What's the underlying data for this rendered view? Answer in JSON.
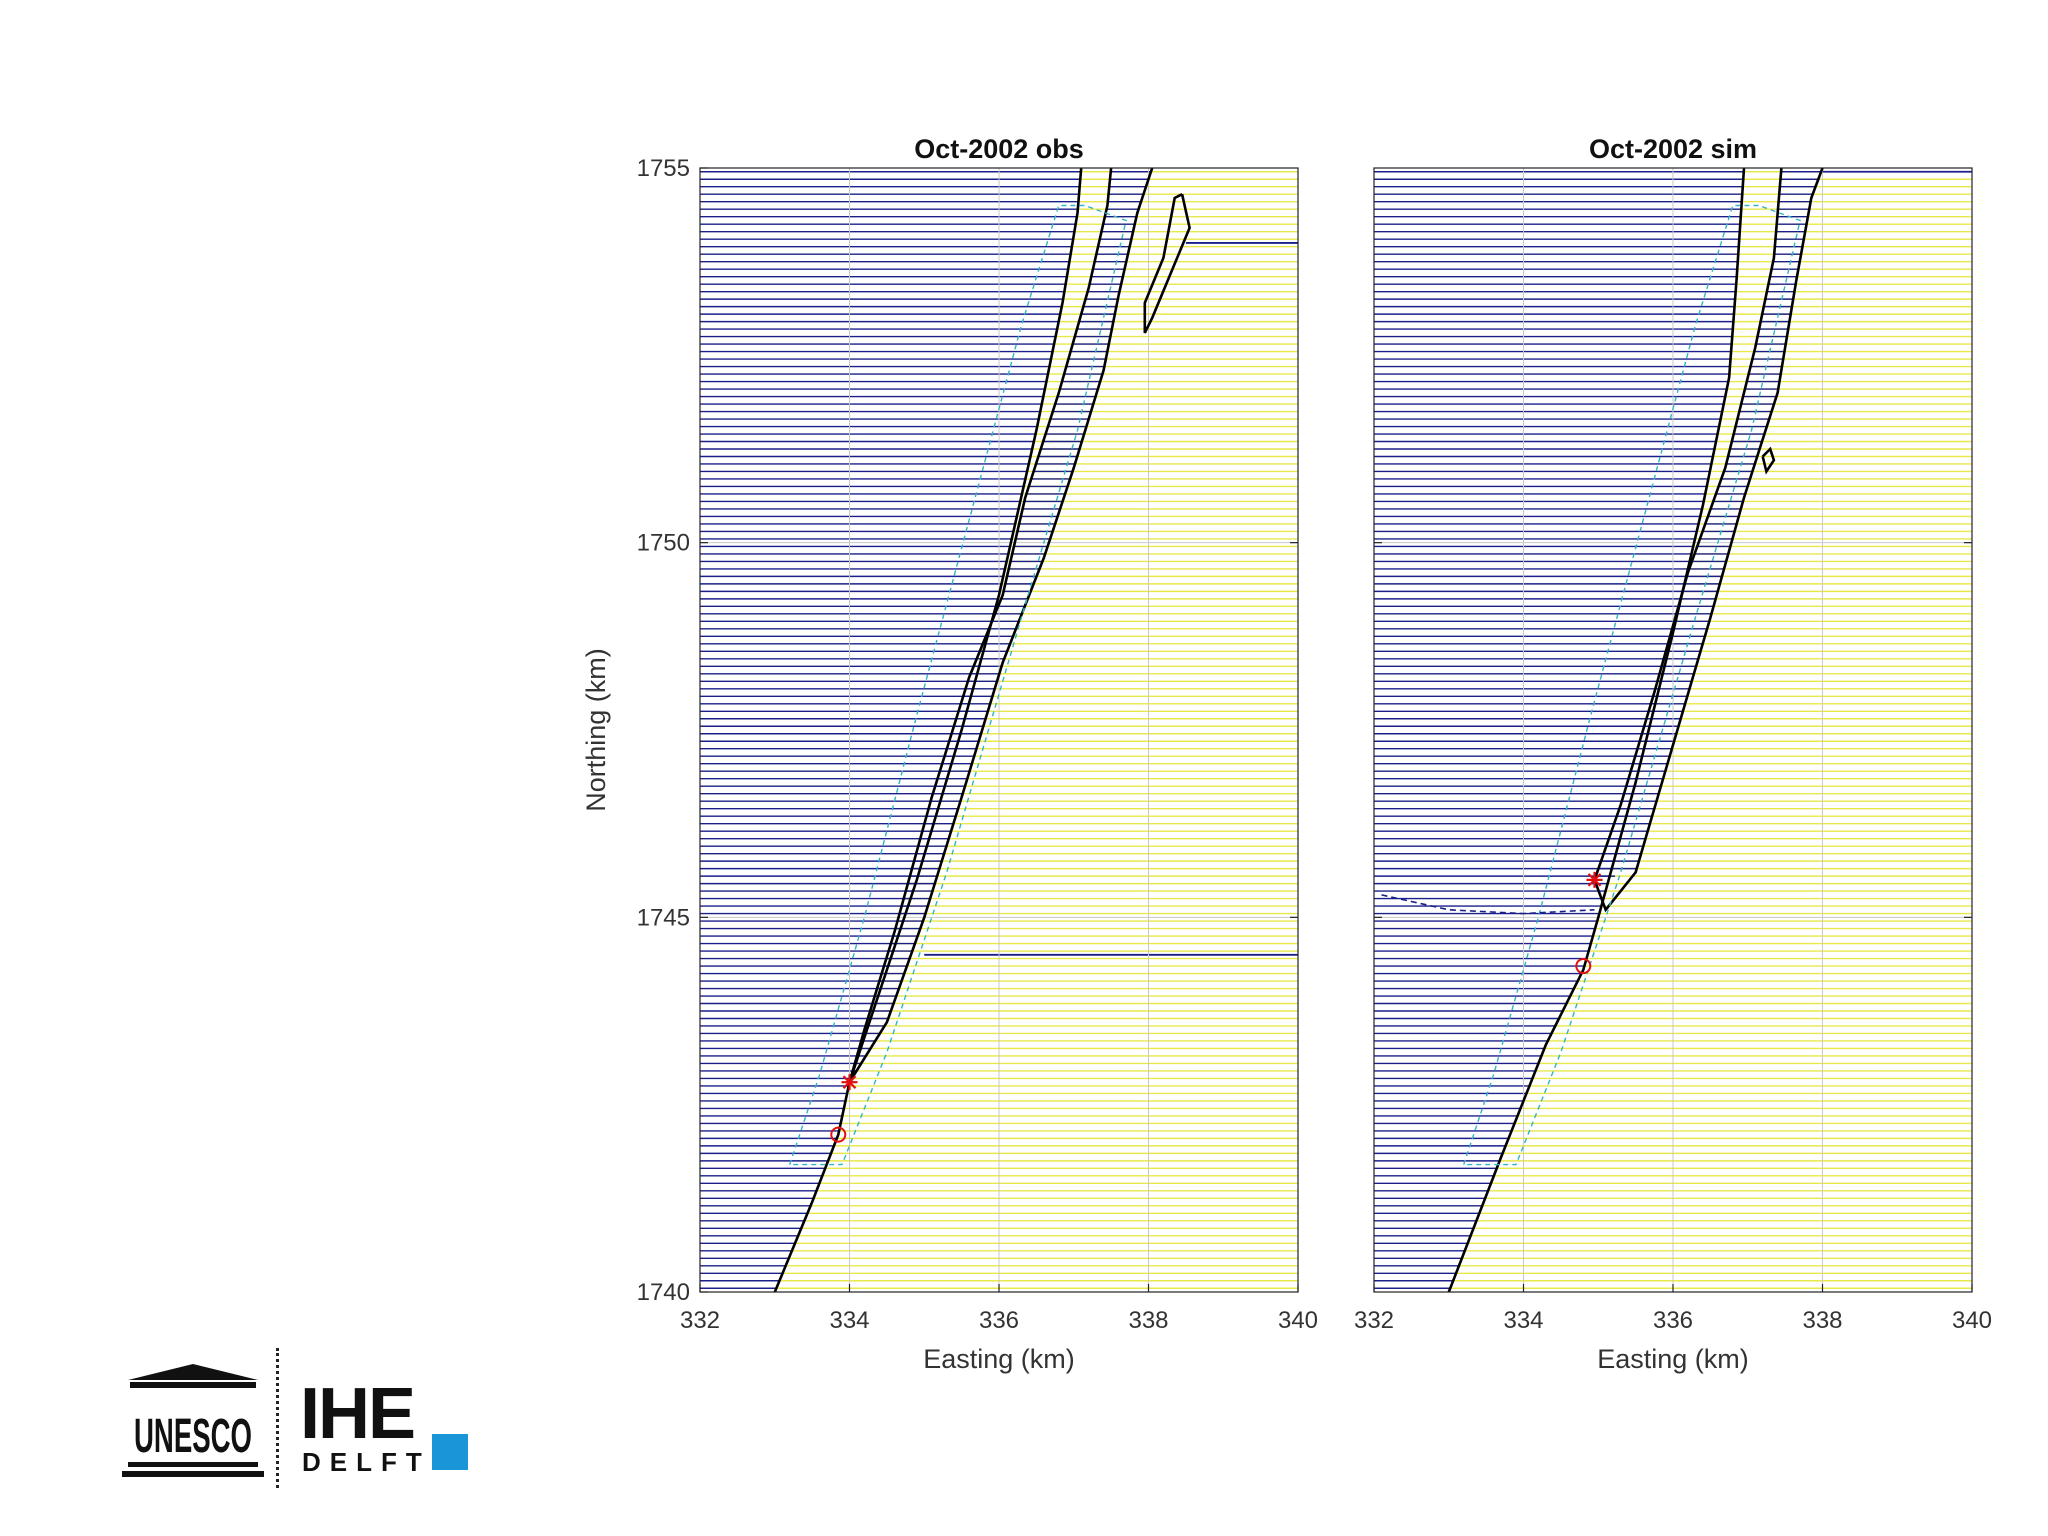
{
  "chart_data": [
    {
      "type": "line",
      "title": "Oct-2002 obs",
      "xlabel": "Easting (km)",
      "ylabel": "Northing (km)",
      "xlim": [
        332,
        340
      ],
      "ylim": [
        1740,
        1755
      ],
      "xticks": [
        "332",
        "334",
        "336",
        "338",
        "340"
      ],
      "yticks": [
        "1740",
        "1745",
        "1750",
        "1755"
      ],
      "grid": true,
      "background": {
        "land_color": "#e8e84a",
        "water_color": "#1a1f8a",
        "row_spacing_km": 0.1
      },
      "series": [
        {
          "role": "coastline",
          "color": "#000000",
          "points": [
            [
              333.0,
              1740.0
            ],
            [
              333.5,
              1741.2
            ],
            [
              333.85,
              1742.1
            ],
            [
              334.0,
              1742.8
            ],
            [
              334.4,
              1744.0
            ],
            [
              334.9,
              1745.5
            ],
            [
              335.5,
              1747.5
            ],
            [
              336.0,
              1749.3
            ],
            [
              336.5,
              1751.5
            ],
            [
              336.85,
              1753.2
            ],
            [
              337.05,
              1754.4
            ],
            [
              337.1,
              1755.0
            ]
          ]
        },
        {
          "role": "spit-inner",
          "color": "#000000",
          "points": [
            [
              334.0,
              1742.8
            ],
            [
              334.2,
              1743.5
            ],
            [
              334.6,
              1744.8
            ],
            [
              335.1,
              1746.6
            ],
            [
              335.6,
              1748.2
            ],
            [
              336.05,
              1749.3
            ],
            [
              336.35,
              1750.6
            ],
            [
              336.8,
              1752.0
            ],
            [
              337.2,
              1753.4
            ],
            [
              337.45,
              1754.5
            ],
            [
              337.5,
              1755.0
            ]
          ]
        },
        {
          "role": "spit-outer",
          "color": "#000000",
          "points": [
            [
              334.0,
              1742.8
            ],
            [
              334.5,
              1743.6
            ],
            [
              335.0,
              1745.0
            ],
            [
              335.5,
              1746.6
            ],
            [
              336.05,
              1748.4
            ],
            [
              336.6,
              1749.8
            ],
            [
              337.0,
              1751.0
            ],
            [
              337.4,
              1752.3
            ],
            [
              337.6,
              1753.3
            ],
            [
              337.85,
              1754.4
            ],
            [
              338.05,
              1755.0
            ]
          ]
        },
        {
          "role": "island",
          "color": "#000000",
          "points": [
            [
              338.45,
              1754.65
            ],
            [
              338.55,
              1754.2
            ],
            [
              338.3,
              1753.6
            ],
            [
              338.05,
              1753.0
            ],
            [
              337.95,
              1752.8
            ],
            [
              337.95,
              1753.2
            ],
            [
              338.2,
              1753.8
            ],
            [
              338.35,
              1754.6
            ],
            [
              338.45,
              1754.65
            ]
          ]
        },
        {
          "role": "reference-outline",
          "color": "#33b3c9",
          "points": [
            [
              333.2,
              1741.7
            ],
            [
              333.6,
              1742.9
            ],
            [
              334.2,
              1745.0
            ],
            [
              334.9,
              1747.7
            ],
            [
              335.6,
              1750.3
            ],
            [
              336.3,
              1752.9
            ],
            [
              336.8,
              1754.5
            ],
            [
              337.15,
              1754.5
            ],
            [
              337.7,
              1754.3
            ],
            [
              337.05,
              1751.5
            ],
            [
              336.3,
              1749.0
            ],
            [
              335.3,
              1745.6
            ],
            [
              334.5,
              1743.2
            ],
            [
              333.9,
              1741.7
            ],
            [
              333.2,
              1741.7
            ]
          ]
        }
      ],
      "markers": [
        {
          "symbol": "*",
          "x": 334.0,
          "y": 1742.8,
          "color": "#e01010"
        },
        {
          "symbol": "o",
          "x": 333.85,
          "y": 1742.1,
          "color": "#e01010"
        }
      ],
      "water_overlays": [
        {
          "y": 1744.5,
          "x_from": 335.0,
          "x_to": 340.0
        },
        {
          "y": 1754.0,
          "x_from": 338.5,
          "x_to": 340.0
        }
      ]
    },
    {
      "type": "line",
      "title": "Oct-2002 sim",
      "xlabel": "Easting (km)",
      "ylabel": "",
      "xlim": [
        332,
        340
      ],
      "ylim": [
        1740,
        1755
      ],
      "xticks": [
        "332",
        "334",
        "336",
        "338",
        "340"
      ],
      "yticks": [],
      "grid": true,
      "background": {
        "land_color": "#e8e84a",
        "water_color": "#1a1f8a",
        "row_spacing_km": 0.1
      },
      "series": [
        {
          "role": "coastline",
          "color": "#000000",
          "points": [
            [
              333.0,
              1740.0
            ],
            [
              333.7,
              1741.8
            ],
            [
              334.3,
              1743.3
            ],
            [
              334.8,
              1744.3
            ],
            [
              335.0,
              1745.0
            ],
            [
              335.5,
              1746.8
            ],
            [
              336.0,
              1748.8
            ],
            [
              336.4,
              1750.5
            ],
            [
              336.75,
              1752.2
            ],
            [
              336.85,
              1753.5
            ],
            [
              336.95,
              1755.0
            ]
          ]
        },
        {
          "role": "spit-inner",
          "color": "#000000",
          "points": [
            [
              334.95,
              1745.5
            ],
            [
              335.3,
              1746.5
            ],
            [
              335.75,
              1748.0
            ],
            [
              336.2,
              1749.6
            ],
            [
              336.7,
              1751.0
            ],
            [
              337.1,
              1752.6
            ],
            [
              337.35,
              1753.8
            ],
            [
              337.45,
              1755.0
            ]
          ]
        },
        {
          "role": "spit-outer",
          "color": "#000000",
          "points": [
            [
              334.95,
              1745.5
            ],
            [
              335.1,
              1745.1
            ],
            [
              335.5,
              1745.6
            ],
            [
              336.0,
              1747.3
            ],
            [
              336.5,
              1749.0
            ],
            [
              336.95,
              1750.6
            ],
            [
              337.4,
              1752.0
            ],
            [
              337.65,
              1753.5
            ],
            [
              337.85,
              1754.6
            ],
            [
              338.0,
              1755.0
            ]
          ]
        },
        {
          "role": "island",
          "color": "#000000",
          "points": [
            [
              337.2,
              1751.15
            ],
            [
              337.3,
              1751.25
            ],
            [
              337.35,
              1751.1
            ],
            [
              337.25,
              1750.95
            ],
            [
              337.2,
              1751.15
            ]
          ]
        },
        {
          "role": "reference-outline",
          "color": "#33b3c9",
          "points": [
            [
              333.2,
              1741.7
            ],
            [
              333.6,
              1742.9
            ],
            [
              334.2,
              1745.0
            ],
            [
              334.9,
              1747.7
            ],
            [
              335.6,
              1750.3
            ],
            [
              336.3,
              1752.9
            ],
            [
              336.8,
              1754.5
            ],
            [
              337.15,
              1754.5
            ],
            [
              337.7,
              1754.3
            ],
            [
              337.05,
              1751.5
            ],
            [
              336.3,
              1749.0
            ],
            [
              335.3,
              1745.6
            ],
            [
              334.5,
              1743.2
            ],
            [
              333.9,
              1741.7
            ],
            [
              333.2,
              1741.7
            ]
          ]
        },
        {
          "role": "channel-dashed",
          "color": "#1a1f8a",
          "points": [
            [
              332.1,
              1745.3
            ],
            [
              333.0,
              1745.1
            ],
            [
              334.0,
              1745.05
            ],
            [
              334.95,
              1745.1
            ]
          ]
        }
      ],
      "markers": [
        {
          "symbol": "*",
          "x": 334.95,
          "y": 1745.5,
          "color": "#e01010"
        },
        {
          "symbol": "o",
          "x": 334.8,
          "y": 1744.35,
          "color": "#e01010"
        }
      ],
      "water_overlays": [
        {
          "y": 1754.95,
          "x_from": 338.0,
          "x_to": 340.0
        }
      ]
    }
  ],
  "logo": {
    "org1": "UNESCO",
    "org2_line1": "IHE",
    "org2_line2": "DELFT",
    "accent": "#1a96d8"
  }
}
